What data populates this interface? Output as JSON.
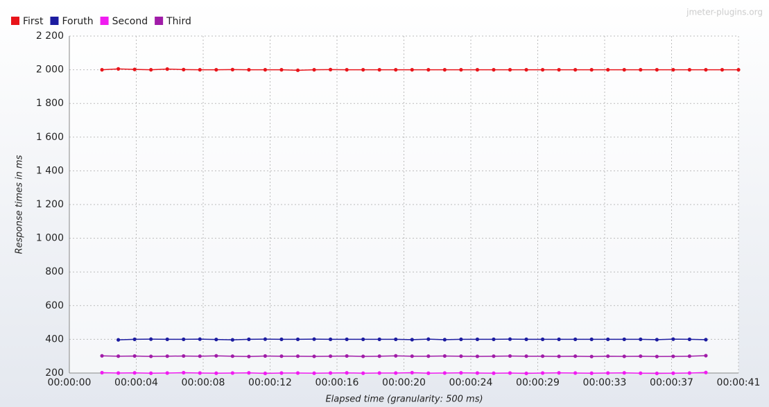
{
  "chart_data": {
    "type": "line",
    "watermark": "jmeter-plugins.org",
    "xlabel": "Elapsed time (granularity: 500 ms)",
    "ylabel": "Response times in ms",
    "xlim": [
      0,
      41
    ],
    "ylim": [
      200,
      2200
    ],
    "grid": true,
    "legend": "top-left",
    "xticks": [
      {
        "value": 0,
        "label": "00:00:00"
      },
      {
        "value": 4.1,
        "label": "00:00:04"
      },
      {
        "value": 8.2,
        "label": "00:00:08"
      },
      {
        "value": 12.3,
        "label": "00:00:12"
      },
      {
        "value": 16.4,
        "label": "00:00:16"
      },
      {
        "value": 20.5,
        "label": "00:00:20"
      },
      {
        "value": 24.6,
        "label": "00:00:24"
      },
      {
        "value": 28.7,
        "label": "00:00:29"
      },
      {
        "value": 32.8,
        "label": "00:00:33"
      },
      {
        "value": 36.9,
        "label": "00:00:37"
      },
      {
        "value": 41,
        "label": "00:00:41"
      }
    ],
    "yticks": [
      200,
      400,
      600,
      800,
      {
        "value": 1000,
        "label": "1 000"
      },
      {
        "value": 1200,
        "label": "1 200"
      },
      {
        "value": 1400,
        "label": "1 400"
      },
      {
        "value": 1600,
        "label": "1 600"
      },
      {
        "value": 1800,
        "label": "1 800"
      },
      {
        "value": 2000,
        "label": "2 000"
      },
      {
        "value": 2200,
        "label": "2 200"
      }
    ],
    "series": [
      {
        "name": "First",
        "color": "#e8141a",
        "x": [
          2,
          3,
          4,
          5,
          6,
          7,
          8,
          9,
          10,
          11,
          12,
          13,
          14,
          15,
          16,
          17,
          18,
          19,
          20,
          21,
          22,
          23,
          24,
          25,
          26,
          27,
          28,
          29,
          30,
          31,
          32,
          33,
          34,
          35,
          36,
          37,
          38,
          39,
          40,
          41
        ],
        "values": [
          2000,
          2005,
          2002,
          2000,
          2004,
          2001,
          2000,
          2000,
          2001,
          2000,
          2000,
          2000,
          1997,
          2000,
          2001,
          2000,
          2000,
          2000,
          2000,
          2000,
          2000,
          2000,
          2000,
          2000,
          2000,
          2000,
          2000,
          2000,
          2000,
          2000,
          2000,
          2000,
          2000,
          2000,
          2000,
          2000,
          2000,
          2000,
          2000,
          2000
        ]
      },
      {
        "name": "Foruth",
        "color": "#1c1ca0",
        "x": [
          3,
          4,
          5,
          6,
          7,
          8,
          9,
          10,
          11,
          12,
          13,
          14,
          15,
          16,
          17,
          18,
          19,
          20,
          21,
          22,
          23,
          24,
          25,
          26,
          27,
          28,
          29,
          30,
          31,
          32,
          33,
          34,
          35,
          36,
          37,
          38,
          39
        ],
        "values": [
          397,
          400,
          401,
          400,
          400,
          401,
          399,
          397,
          400,
          401,
          400,
          400,
          401,
          400,
          400,
          400,
          400,
          400,
          398,
          401,
          398,
          400,
          400,
          400,
          401,
          400,
          400,
          400,
          400,
          400,
          400,
          400,
          400,
          398,
          401,
          400,
          398
        ]
      },
      {
        "name": "Second",
        "color": "#f01cf0",
        "x": [
          2,
          3,
          4,
          5,
          6,
          7,
          8,
          9,
          10,
          11,
          12,
          13,
          14,
          15,
          16,
          17,
          18,
          19,
          20,
          21,
          22,
          23,
          24,
          25,
          26,
          27,
          28,
          29,
          30,
          31,
          32,
          33,
          34,
          35,
          36,
          37,
          38,
          39
        ],
        "values": [
          202,
          200,
          201,
          199,
          200,
          202,
          200,
          199,
          200,
          201,
          198,
          200,
          200,
          199,
          200,
          201,
          199,
          200,
          200,
          202,
          199,
          200,
          201,
          200,
          199,
          200,
          198,
          200,
          201,
          200,
          199,
          200,
          201,
          199,
          198,
          199,
          200,
          203
        ]
      },
      {
        "name": "Third",
        "color": "#a01ca8",
        "x": [
          2,
          3,
          4,
          5,
          6,
          7,
          8,
          9,
          10,
          11,
          12,
          13,
          14,
          15,
          16,
          17,
          18,
          19,
          20,
          21,
          22,
          23,
          24,
          25,
          26,
          27,
          28,
          29,
          30,
          31,
          32,
          33,
          34,
          35,
          36,
          37,
          38,
          39
        ],
        "values": [
          302,
          300,
          301,
          299,
          300,
          301,
          300,
          302,
          300,
          298,
          301,
          300,
          300,
          299,
          300,
          301,
          299,
          300,
          302,
          300,
          300,
          301,
          300,
          299,
          300,
          301,
          300,
          300,
          299,
          300,
          298,
          300,
          299,
          300,
          298,
          299,
          300,
          303
        ]
      }
    ]
  }
}
